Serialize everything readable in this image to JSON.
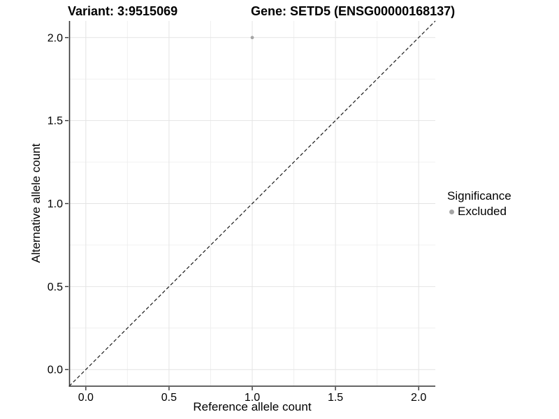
{
  "chart_data": {
    "type": "scatter",
    "titles": {
      "left": "Variant: 3:9515069",
      "right": "Gene: SETD5 (ENSG00000168137)"
    },
    "xlabel": "Reference allele count",
    "ylabel": "Alternative allele count",
    "xlim": [
      -0.1,
      2.1
    ],
    "ylim": [
      -0.1,
      2.1
    ],
    "x_ticks": [
      0.0,
      0.5,
      1.0,
      1.5,
      2.0
    ],
    "y_ticks": [
      0.0,
      0.5,
      1.0,
      1.5,
      2.0
    ],
    "x_minor_ticks": [
      0.25,
      0.75,
      1.25,
      1.75
    ],
    "y_minor_ticks": [
      0.25,
      0.75,
      1.25,
      1.75
    ],
    "tick_decimals": 1,
    "grid": "major+minor",
    "series": [
      {
        "name": "Excluded",
        "color": "#a5a5a5",
        "marker": "circle",
        "points": [
          {
            "x": 1.0,
            "y": 2.0
          }
        ]
      }
    ],
    "reference_line": {
      "slope": 1,
      "intercept": 0,
      "linetype": "dashed",
      "color": "#1a1a1a",
      "meaning": "identity line y = x"
    },
    "legend": {
      "title": "Significance",
      "position": "right",
      "items": [
        {
          "label": "Excluded",
          "color": "#a5a5a5"
        }
      ]
    }
  },
  "colors": {
    "background": "#ffffff",
    "grid_major": "#e4e4e4",
    "grid_minor": "#f0f0f0",
    "axis_line": "#333333",
    "tick_mark": "#333333",
    "text": "#000000",
    "point": "#a5a5a5"
  }
}
